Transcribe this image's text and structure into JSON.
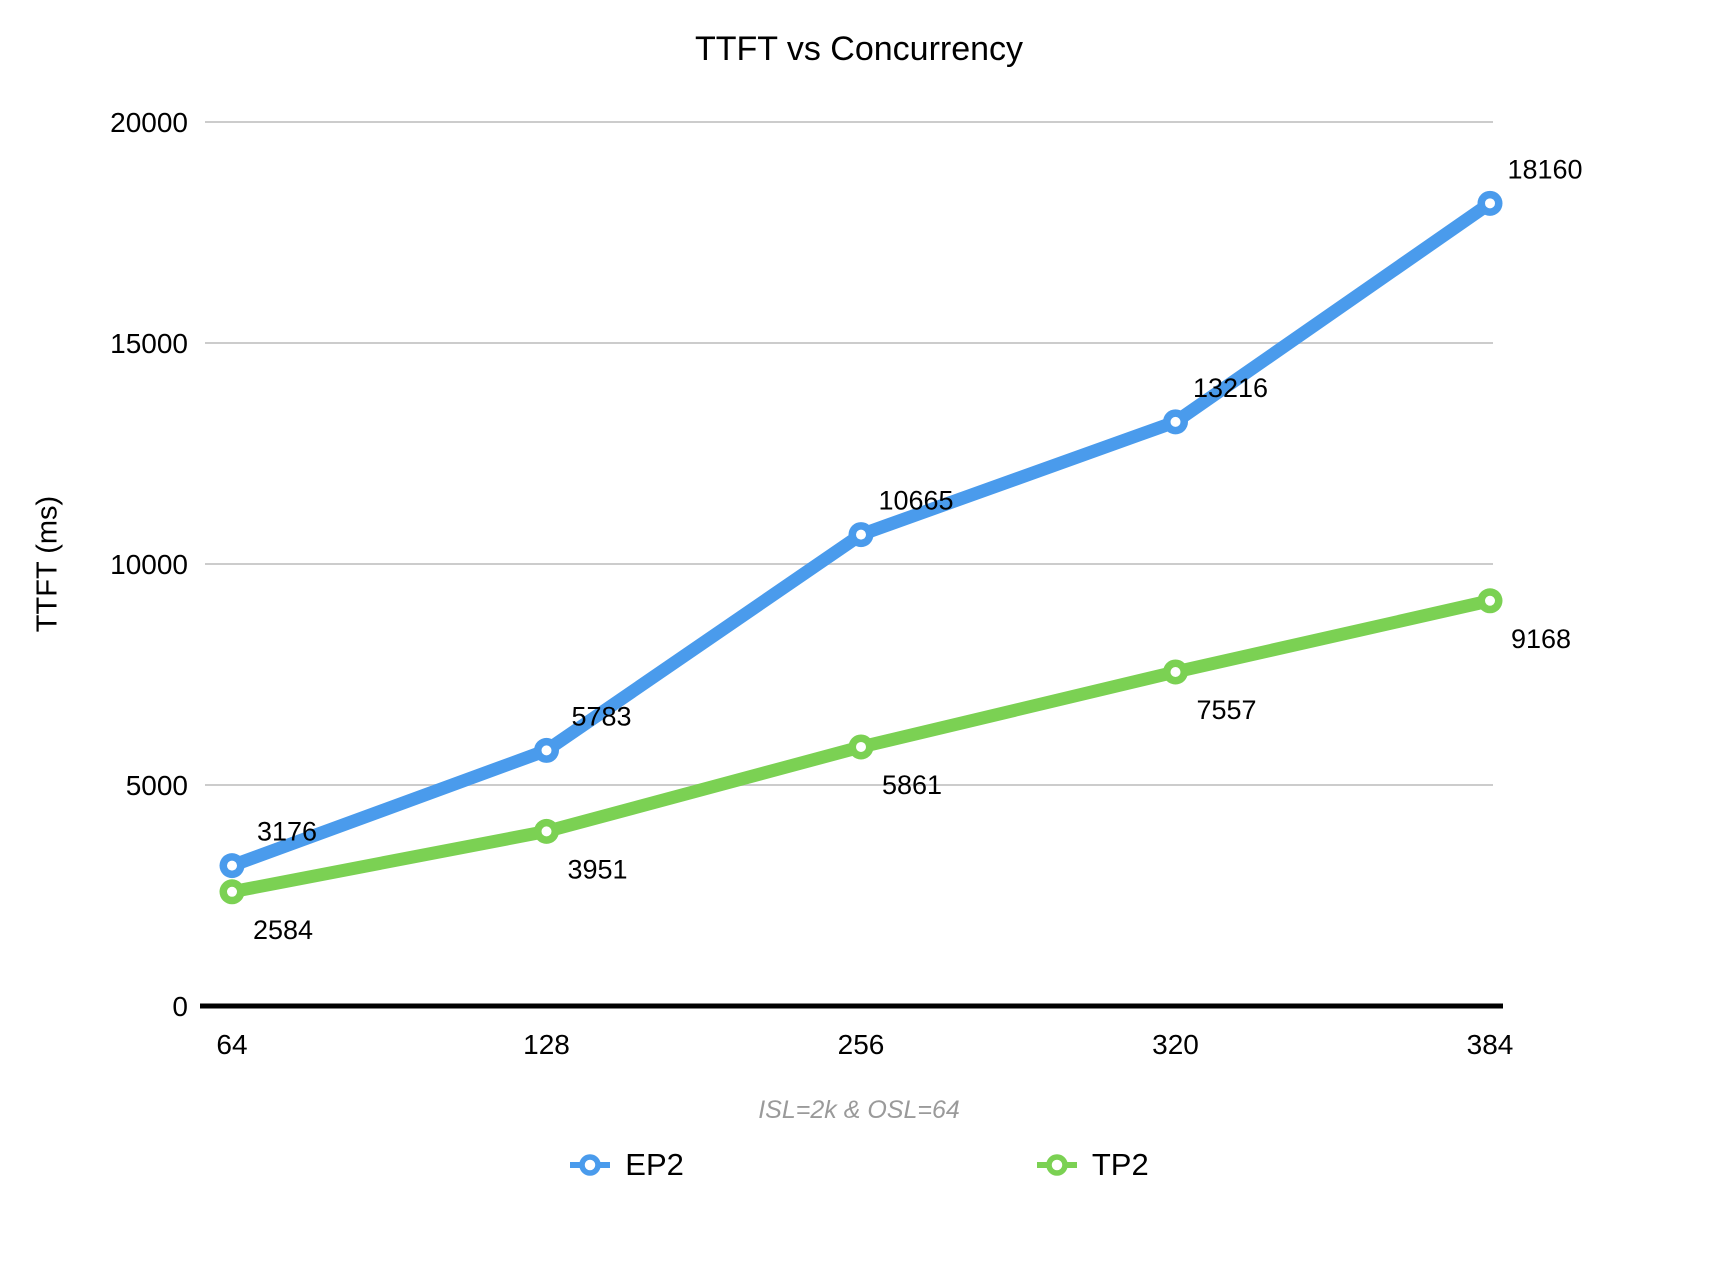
{
  "chart_data": {
    "type": "line",
    "title": "TTFT vs Concurrency",
    "ylabel": "TTFT (ms)",
    "note": "ISL=2k & OSL=64",
    "categories": [
      "64",
      "128",
      "256",
      "320",
      "384"
    ],
    "series": [
      {
        "name": "EP2",
        "color": "#4a9bec",
        "values": [
          3176,
          5783,
          10665,
          13216,
          18160
        ]
      },
      {
        "name": "TP2",
        "color": "#7bd153",
        "values": [
          2584,
          3951,
          5861,
          7557,
          9168
        ]
      }
    ],
    "yticks": [
      0,
      5000,
      10000,
      15000,
      20000
    ],
    "ylim": [
      0,
      20000
    ],
    "grid": true,
    "legend_position": "bottom",
    "data_labels_shown": true,
    "colors": {
      "gridline": "#cccccc",
      "axis": "#000000",
      "label_text": "#000000",
      "note_text": "#9a9a9a",
      "marker_hole": "#ffffff"
    }
  }
}
